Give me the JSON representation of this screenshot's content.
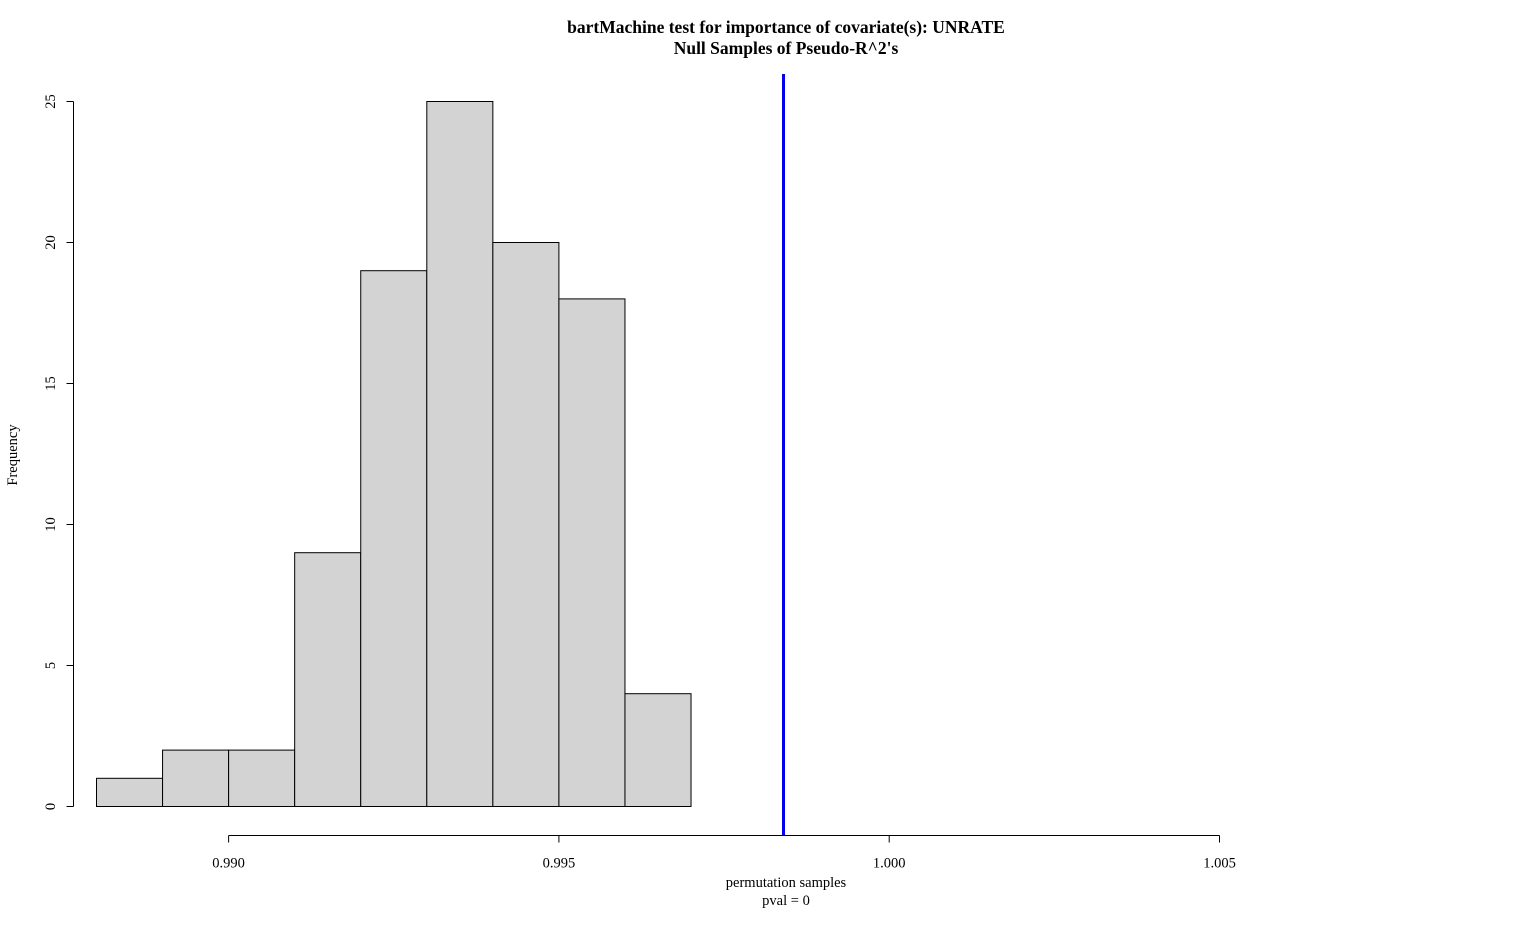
{
  "chart_data": {
    "type": "bar",
    "title": "bartMachine test for importance of covariate(s): UNRATE",
    "subtitle": "Null Samples of Pseudo-R^2's",
    "xlabel": "permutation samples",
    "xlabel2": "pval = 0",
    "ylabel": "Frequency",
    "x_ticks": [
      0.99,
      0.995,
      1.0,
      1.005
    ],
    "x_tick_labels": [
      "0.990",
      "0.995",
      "1.000",
      "1.005"
    ],
    "y_ticks": [
      0,
      5,
      10,
      15,
      20,
      25
    ],
    "y_tick_labels": [
      "0",
      "5",
      "10",
      "15",
      "20",
      "25"
    ],
    "xlim": [
      0.988,
      1.005
    ],
    "ylim": [
      0,
      25
    ],
    "bins": [
      {
        "x0": 0.988,
        "x1": 0.989,
        "count": 1
      },
      {
        "x0": 0.989,
        "x1": 0.99,
        "count": 2
      },
      {
        "x0": 0.99,
        "x1": 0.991,
        "count": 2
      },
      {
        "x0": 0.991,
        "x1": 0.992,
        "count": 9
      },
      {
        "x0": 0.992,
        "x1": 0.993,
        "count": 19
      },
      {
        "x0": 0.993,
        "x1": 0.994,
        "count": 25
      },
      {
        "x0": 0.994,
        "x1": 0.995,
        "count": 20
      },
      {
        "x0": 0.995,
        "x1": 0.996,
        "count": 18
      },
      {
        "x0": 0.996,
        "x1": 0.997,
        "count": 4
      }
    ],
    "reference_line": {
      "x": 0.9984,
      "color": "#0000ee"
    },
    "bar_fill": "#d3d3d3",
    "bar_stroke": "#000000",
    "grid": false
  }
}
